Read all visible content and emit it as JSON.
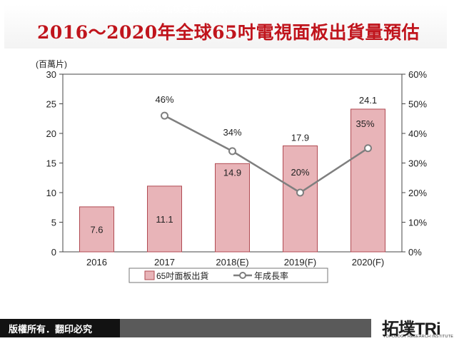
{
  "page": {
    "title": "2016～2020年全球65吋電視面板出貨量預估",
    "footer_copyright": "版權所有．翻印必究",
    "footer_source": "Source：拓墣產業研究院，2018/04",
    "logo_text": "拓墣TRi",
    "logo_subtext": "TOPOLOGY RESEARCH INSTITUTE",
    "colors": {
      "title": "#c0141c",
      "bar_fill": "#e8b4b8",
      "bar_stroke": "#b04a52",
      "line": "#7f7f7f",
      "footer_dark": "#121212",
      "footer_bar": "#5a5a5a"
    }
  },
  "chart_data": {
    "type": "bar",
    "categories": [
      "2016",
      "2017",
      "2018(E)",
      "2019(F)",
      "2020(F)"
    ],
    "ylabel": "(百萬片)",
    "ylim": [
      0,
      30
    ],
    "yticks": [
      0,
      5,
      10,
      15,
      20,
      25,
      30
    ],
    "y2lim": [
      0,
      60
    ],
    "y2ticks": [
      "0%",
      "10%",
      "20%",
      "30%",
      "40%",
      "50%",
      "60%"
    ],
    "grid": false,
    "legend_position": "bottom",
    "series": [
      {
        "name": "65吋面板出貨",
        "type": "bar",
        "axis": "left",
        "values": [
          7.6,
          11.1,
          14.9,
          17.9,
          24.1
        ],
        "labels": [
          "7.6",
          "11.1",
          "14.9",
          "17.9",
          "24.1"
        ]
      },
      {
        "name": "年成長率",
        "type": "line",
        "axis": "right",
        "values": [
          null,
          46,
          34,
          20,
          35
        ],
        "labels": [
          "",
          "46%",
          "34%",
          "20%",
          "35%"
        ]
      }
    ]
  }
}
